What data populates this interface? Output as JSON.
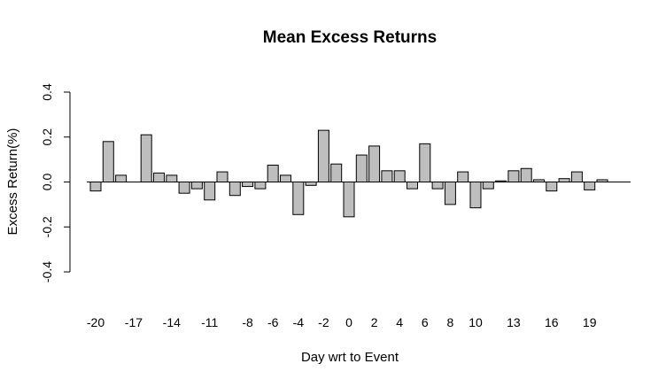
{
  "chart_data": {
    "type": "bar",
    "title": "Mean Excess Returns",
    "xlabel": "Day wrt to Event",
    "ylabel": "Excess Return(%)",
    "ylim": [
      -0.4,
      0.4
    ],
    "yticks": [
      "-0.4",
      "-0.2",
      "0.0",
      "0.2",
      "0.4"
    ],
    "xtick_labels": [
      "-20",
      "-17",
      "-14",
      "-11",
      "-8",
      "-6",
      "-4",
      "-2",
      "0",
      "2",
      "4",
      "6",
      "8",
      "10",
      "13",
      "16",
      "19"
    ],
    "categories": [
      -20,
      -19,
      -18,
      -17,
      -16,
      -15,
      -14,
      -13,
      -12,
      -11,
      -10,
      -9,
      -8,
      -7,
      -6,
      -5,
      -4,
      -3,
      -2,
      -1,
      0,
      1,
      2,
      3,
      4,
      5,
      6,
      7,
      8,
      9,
      10,
      11,
      12,
      13,
      14,
      15,
      16,
      17,
      18,
      19,
      20
    ],
    "values": [
      -0.04,
      0.18,
      0.03,
      0.0,
      0.21,
      0.04,
      0.03,
      -0.05,
      -0.03,
      -0.08,
      0.045,
      -0.06,
      -0.02,
      -0.03,
      0.075,
      0.03,
      -0.145,
      -0.015,
      0.23,
      0.08,
      -0.155,
      0.12,
      0.16,
      0.05,
      0.05,
      -0.03,
      0.17,
      -0.03,
      -0.1,
      0.045,
      -0.115,
      -0.03,
      0.005,
      0.05,
      0.06,
      0.01,
      -0.04,
      0.015,
      0.045,
      -0.035,
      0.01
    ],
    "bar_color": "#bebebe",
    "grid": false
  }
}
